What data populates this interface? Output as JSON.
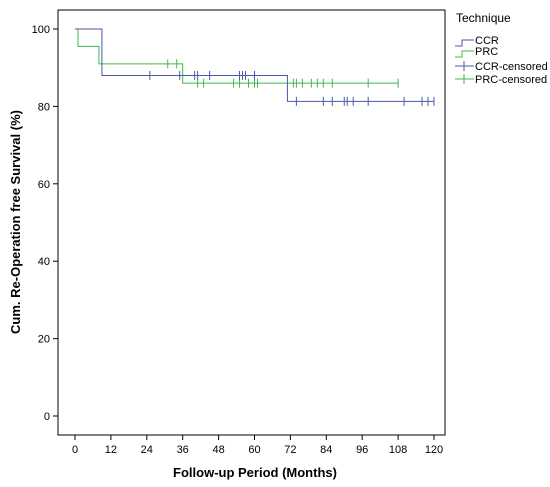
{
  "chart_data": {
    "type": "line",
    "subtype": "kaplan-meier-step",
    "xlabel": "Follow-up Period (Months)",
    "ylabel": "Cum. Re-Operation free Survival (%)",
    "xlim": [
      0,
      120
    ],
    "ylim": [
      0,
      100
    ],
    "xticks": [
      0,
      12,
      24,
      36,
      48,
      60,
      72,
      84,
      96,
      108,
      120
    ],
    "yticks": [
      0,
      20,
      40,
      60,
      80,
      100
    ],
    "grid": false,
    "legend": {
      "title": "Technique",
      "placement": "outside-top-right",
      "entries": [
        "CCR",
        "PRC",
        "CCR-censored",
        "PRC-censored"
      ]
    },
    "series": [
      {
        "name": "CCR",
        "color": "#4a5aa8",
        "steps": [
          [
            0,
            100
          ],
          [
            9,
            100
          ],
          [
            9,
            88
          ],
          [
            71,
            88
          ],
          [
            71,
            81.3
          ],
          [
            120,
            81.3
          ]
        ],
        "censored": [
          {
            "x": 25,
            "y": 88
          },
          {
            "x": 35,
            "y": 88
          },
          {
            "x": 40,
            "y": 88
          },
          {
            "x": 41,
            "y": 88
          },
          {
            "x": 45,
            "y": 88
          },
          {
            "x": 55,
            "y": 88
          },
          {
            "x": 56,
            "y": 88
          },
          {
            "x": 57,
            "y": 88
          },
          {
            "x": 60,
            "y": 88
          },
          {
            "x": 74,
            "y": 81.3
          },
          {
            "x": 83,
            "y": 81.3
          },
          {
            "x": 86,
            "y": 81.3
          },
          {
            "x": 90,
            "y": 81.3
          },
          {
            "x": 91,
            "y": 81.3
          },
          {
            "x": 93,
            "y": 81.3
          },
          {
            "x": 98,
            "y": 81.3
          },
          {
            "x": 110,
            "y": 81.3
          },
          {
            "x": 116,
            "y": 81.3
          },
          {
            "x": 118,
            "y": 81.3
          },
          {
            "x": 120,
            "y": 81.3
          }
        ]
      },
      {
        "name": "PRC",
        "color": "#3fb84a",
        "steps": [
          [
            0,
            100
          ],
          [
            1,
            100
          ],
          [
            1,
            95.5
          ],
          [
            8,
            95.5
          ],
          [
            8,
            91
          ],
          [
            36,
            91
          ],
          [
            36,
            86
          ],
          [
            108,
            86
          ]
        ],
        "censored": [
          {
            "x": 31,
            "y": 91
          },
          {
            "x": 34,
            "y": 91
          },
          {
            "x": 41,
            "y": 86
          },
          {
            "x": 43,
            "y": 86
          },
          {
            "x": 53,
            "y": 86
          },
          {
            "x": 55,
            "y": 86
          },
          {
            "x": 58,
            "y": 86
          },
          {
            "x": 60,
            "y": 86
          },
          {
            "x": 61,
            "y": 86
          },
          {
            "x": 73,
            "y": 86
          },
          {
            "x": 74,
            "y": 86
          },
          {
            "x": 76,
            "y": 86
          },
          {
            "x": 79,
            "y": 86
          },
          {
            "x": 81,
            "y": 86
          },
          {
            "x": 83,
            "y": 86
          },
          {
            "x": 86,
            "y": 86
          },
          {
            "x": 98,
            "y": 86
          },
          {
            "x": 108,
            "y": 86
          }
        ]
      }
    ]
  }
}
